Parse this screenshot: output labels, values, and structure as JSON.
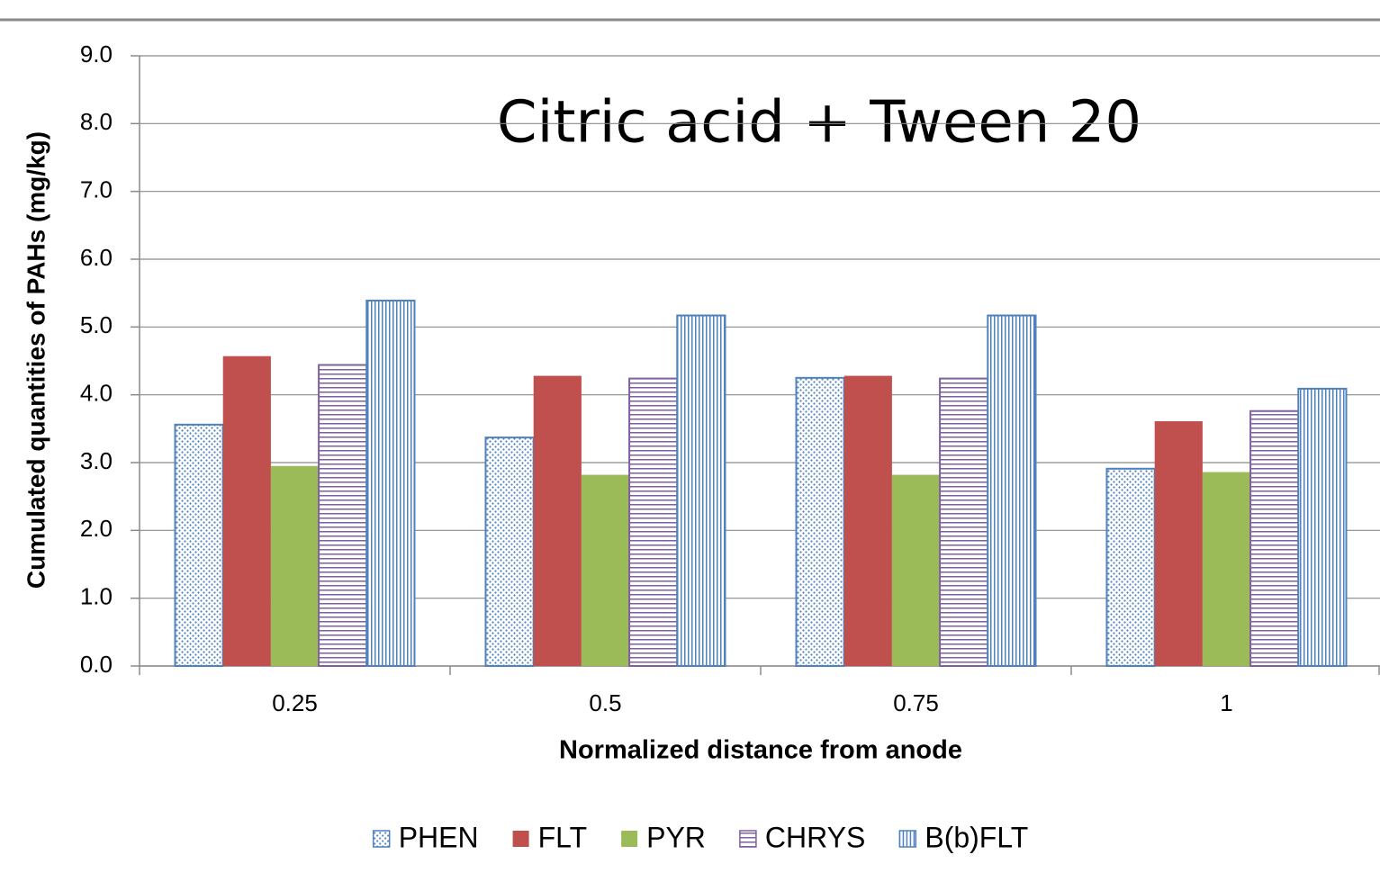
{
  "chart_data": {
    "type": "bar",
    "title": "Citric acid + Tween 20",
    "x_label": "Normalized distance from anode",
    "y_label": "Cumulated quantities of PAHs (mg/kg)",
    "categories": [
      "0.25",
      "0.5",
      "0.75",
      "1"
    ],
    "series": [
      {
        "name": "PHEN",
        "color": "#4f81bd",
        "pattern": "dots",
        "values": [
          3.56,
          3.37,
          4.25,
          2.91
        ]
      },
      {
        "name": "FLT",
        "color": "#c0504d",
        "values": [
          4.57,
          4.28,
          4.28,
          3.61
        ]
      },
      {
        "name": "PYR",
        "color": "#9bbb59",
        "values": [
          2.95,
          2.82,
          2.82,
          2.86
        ]
      },
      {
        "name": "CHRYS",
        "color": "#7f5f9f",
        "pattern": "horizontal-stripes",
        "values": [
          4.44,
          4.24,
          4.24,
          3.76
        ]
      },
      {
        "name": "B(b)FLT",
        "color": "#4f81bd",
        "pattern": "vertical-stripes",
        "values": [
          5.39,
          5.17,
          5.17,
          4.09
        ]
      }
    ],
    "ylim": [
      0,
      9
    ],
    "yticks": [
      {
        "value": 0,
        "label": "0.0"
      },
      {
        "value": 1,
        "label": "1.0"
      },
      {
        "value": 2,
        "label": "2.0"
      },
      {
        "value": 3,
        "label": "3.0"
      },
      {
        "value": 4,
        "label": "4.0"
      },
      {
        "value": 5,
        "label": "5.0"
      },
      {
        "value": 6,
        "label": "6.0"
      },
      {
        "value": 7,
        "label": "7.0"
      },
      {
        "value": 8,
        "label": "8.0"
      },
      {
        "value": 9,
        "label": "9.0"
      }
    ],
    "grid": true,
    "legend": "bottom"
  }
}
